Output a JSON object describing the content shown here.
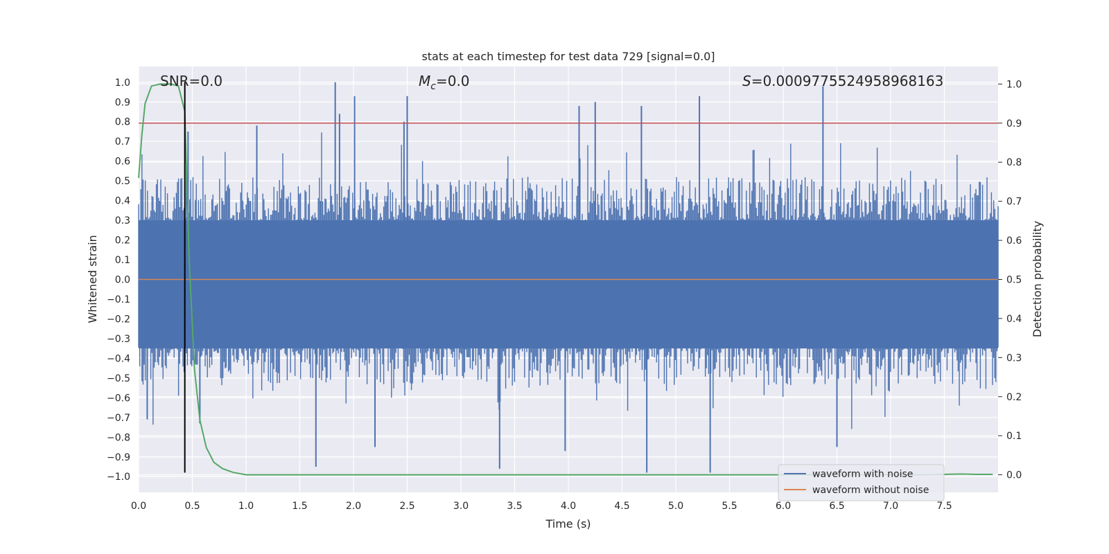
{
  "chart_data": {
    "type": "line",
    "title": "stats at each timestep for test data 729 [signal=0.0]",
    "xlabel": "Time (s)",
    "ylabel": "Whitened strain",
    "y2label": "Detection probability",
    "xlim": [
      0.0,
      8.0
    ],
    "ylim": [
      -1.08,
      1.08
    ],
    "y2lim": [
      -0.045,
      1.045
    ],
    "x_ticks": [
      0.0,
      0.5,
      1.0,
      1.5,
      2.0,
      2.5,
      3.0,
      3.5,
      4.0,
      4.5,
      5.0,
      5.5,
      6.0,
      6.5,
      7.0,
      7.5
    ],
    "x_tick_labels": [
      "0.0",
      "0.5",
      "1.0",
      "1.5",
      "2.0",
      "2.5",
      "3.0",
      "3.5",
      "4.0",
      "4.5",
      "5.0",
      "5.5",
      "6.0",
      "6.5",
      "7.0",
      "7.5"
    ],
    "y_ticks": [
      -1.0,
      -0.9,
      -0.8,
      -0.7,
      -0.6,
      -0.5,
      -0.4,
      -0.3,
      -0.2,
      -0.1,
      0.0,
      0.1,
      0.2,
      0.3,
      0.4,
      0.5,
      0.6,
      0.7,
      0.8,
      0.9,
      1.0
    ],
    "y_tick_labels": [
      "−1.0",
      "−0.9",
      "−0.8",
      "−0.7",
      "−0.6",
      "−0.5",
      "−0.4",
      "−0.3",
      "−0.2",
      "−0.1",
      "0.0",
      "0.1",
      "0.2",
      "0.3",
      "0.4",
      "0.5",
      "0.6",
      "0.7",
      "0.8",
      "0.9",
      "1.0"
    ],
    "y2_ticks": [
      0.0,
      0.1,
      0.2,
      0.3,
      0.4,
      0.5,
      0.6,
      0.7,
      0.8,
      0.9,
      1.0
    ],
    "y2_tick_labels": [
      "0.0",
      "0.1",
      "0.2",
      "0.3",
      "0.4",
      "0.5",
      "0.6",
      "0.7",
      "0.8",
      "0.9",
      "1.0"
    ],
    "annotations": {
      "snr": "SNR=0.0",
      "mc_symbol": "M",
      "mc_sub": "c",
      "mc_value": "=0.0",
      "s_symbol": "S",
      "s_value": "=0.0009775524958968163"
    },
    "threshold_line": {
      "y2": 0.9,
      "color": "#c44e52"
    },
    "marker_line": {
      "x": 0.43,
      "y_from": -0.98,
      "y_to": 1.0,
      "color": "#000000"
    },
    "series": [
      {
        "name": "waveform with noise",
        "axis": "left",
        "color": "#4c72b0",
        "kind": "noise",
        "envelope_typical": 0.4,
        "spikes": [
          {
            "x": 1.83,
            "y": 1.0
          },
          {
            "x": 1.87,
            "y": 0.84
          },
          {
            "x": 2.01,
            "y": 0.93
          },
          {
            "x": 2.5,
            "y": 0.93
          },
          {
            "x": 2.47,
            "y": 0.8
          },
          {
            "x": 4.1,
            "y": 0.88
          },
          {
            "x": 4.25,
            "y": 0.9
          },
          {
            "x": 4.68,
            "y": 0.88
          },
          {
            "x": 5.22,
            "y": 0.93
          },
          {
            "x": 6.37,
            "y": 0.98
          },
          {
            "x": 1.1,
            "y": 0.78
          },
          {
            "x": 0.46,
            "y": 0.75
          },
          {
            "x": 1.65,
            "y": -0.95
          },
          {
            "x": 3.36,
            "y": -0.96
          },
          {
            "x": 4.73,
            "y": -0.98
          },
          {
            "x": 5.32,
            "y": -0.98
          },
          {
            "x": 2.2,
            "y": -0.85
          },
          {
            "x": 3.97,
            "y": -0.87
          },
          {
            "x": 6.5,
            "y": -0.85
          },
          {
            "x": 0.08,
            "y": -0.71
          },
          {
            "x": 0.57,
            "y": -0.73
          }
        ]
      },
      {
        "name": "waveform without noise",
        "axis": "left",
        "color": "#dd8452",
        "x": [
          0.0,
          8.0
        ],
        "y": [
          0.0,
          0.0
        ]
      },
      {
        "name": "detection probability",
        "axis": "right",
        "color": "#55a868",
        "x": [
          0.0,
          0.03,
          0.06,
          0.12,
          0.2,
          0.3,
          0.37,
          0.43,
          0.47,
          0.52,
          0.57,
          0.63,
          0.7,
          0.78,
          0.88,
          1.0,
          1.5,
          2.0,
          3.0,
          4.0,
          5.0,
          6.0,
          7.0,
          7.3,
          7.5,
          7.65,
          7.8,
          7.95
        ],
        "y": [
          0.76,
          0.87,
          0.95,
          0.995,
          1.0,
          1.0,
          0.995,
          0.93,
          0.55,
          0.27,
          0.14,
          0.07,
          0.032,
          0.016,
          0.006,
          0.0,
          0.0,
          0.0,
          0.0,
          0.0,
          0.0,
          0.0,
          0.0,
          0.0,
          0.001,
          0.002,
          0.001,
          0.001
        ]
      }
    ],
    "legend": {
      "location": "lower-right",
      "entries": [
        {
          "label": "waveform with noise",
          "color": "#4c72b0"
        },
        {
          "label": "waveform without noise",
          "color": "#dd8452"
        }
      ]
    },
    "style": {
      "background": "#eaeaf2",
      "grid": "#ffffff"
    }
  }
}
